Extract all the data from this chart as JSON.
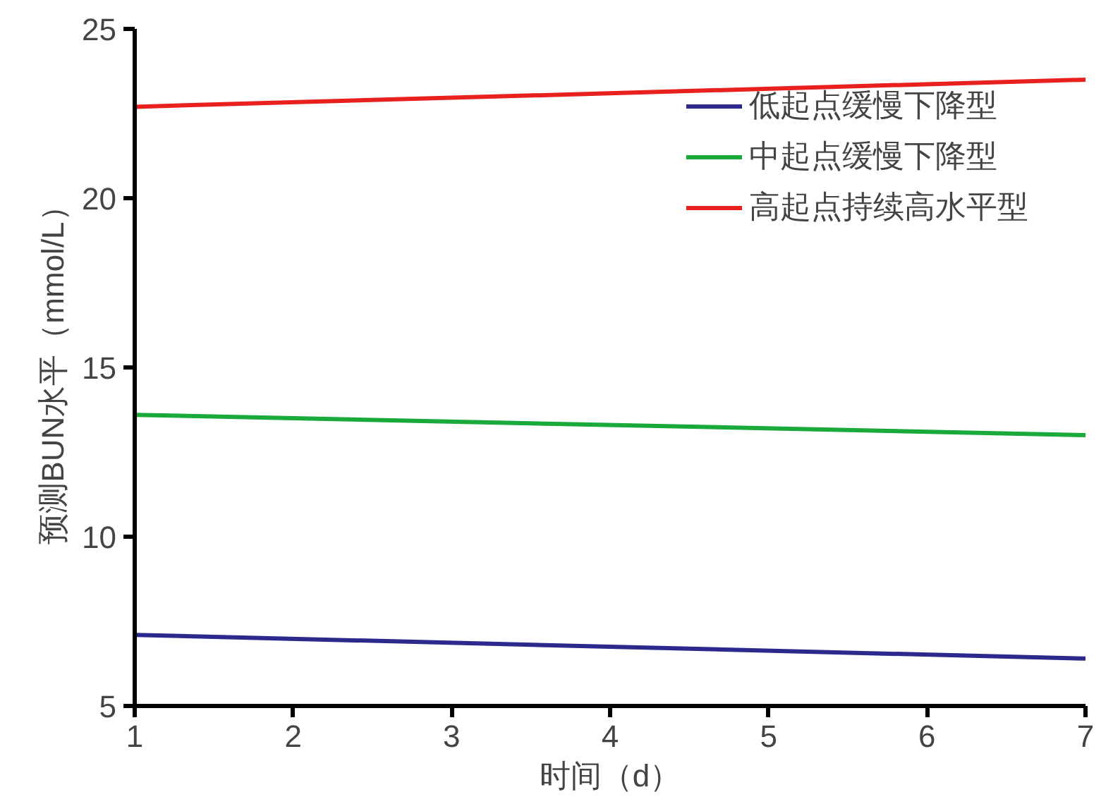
{
  "chart_data": {
    "type": "line",
    "xlabel": "时间（d）",
    "ylabel": "预测BUN水平（mmol/L）",
    "x": [
      1,
      7
    ],
    "series": [
      {
        "name": "低起点缓慢下降型",
        "color": "#2b2a8c",
        "values": [
          7.1,
          6.4
        ]
      },
      {
        "name": "中起点缓慢下降型",
        "color": "#1aaa3c",
        "values": [
          13.6,
          13.0
        ]
      },
      {
        "name": "高起点持续高水平型",
        "color": "#e8211f",
        "values": [
          22.7,
          23.5
        ]
      }
    ],
    "xlim": [
      1,
      7
    ],
    "ylim": [
      5,
      25
    ],
    "xticks": [
      1,
      2,
      3,
      4,
      5,
      6,
      7
    ],
    "yticks": [
      5,
      10,
      15,
      20,
      25
    ],
    "grid": false,
    "legend": "top right",
    "line_style": "solid",
    "marker": "none"
  }
}
